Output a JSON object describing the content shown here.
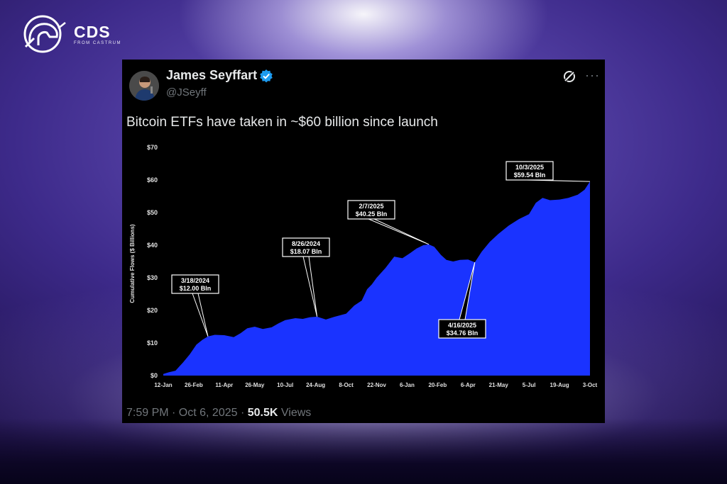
{
  "brand": {
    "title": "CDS",
    "subtitle": "FROM CASTRUM"
  },
  "tweet": {
    "author_name": "James Seyffart",
    "handle": "@JSeyff",
    "text": "Bitcoin ETFs have taken in ~$60 billion since launch",
    "time": "7:59 PM · Oct 6, 2025 · ",
    "views_count": "50.5K",
    "views_label": "Views",
    "more_label": "···"
  },
  "colors": {
    "area": "#1a33ff",
    "accent": "#1d9bf0"
  },
  "chart_data": {
    "type": "area",
    "ylabel": "Cumulative Flows ($ Billions)",
    "ylim": [
      0,
      70
    ],
    "y_ticks": [
      "$0",
      "$10",
      "$20",
      "$30",
      "$40",
      "$50",
      "$60",
      "$70"
    ],
    "x_ticks": [
      "12-Jan",
      "26-Feb",
      "11-Apr",
      "26-May",
      "10-Jul",
      "24-Aug",
      "8-Oct",
      "22-Nov",
      "6-Jan",
      "20-Feb",
      "6-Apr",
      "21-May",
      "5-Jul",
      "19-Aug",
      "3-Oct"
    ],
    "x_tick_dates": [
      "2024-01-12",
      "2024-02-26",
      "2024-04-11",
      "2024-05-26",
      "2024-07-10",
      "2024-08-24",
      "2024-10-08",
      "2024-11-22",
      "2025-01-06",
      "2025-02-20",
      "2025-04-06",
      "2025-05-21",
      "2025-07-05",
      "2025-08-19",
      "2025-10-03"
    ],
    "series": [
      {
        "x": [
          "2024-01-12",
          "2024-01-20",
          "2024-01-30",
          "2024-02-10",
          "2024-02-20",
          "2024-03-01",
          "2024-03-10",
          "2024-03-18",
          "2024-03-28",
          "2024-04-11",
          "2024-04-25",
          "2024-05-05",
          "2024-05-15",
          "2024-05-26",
          "2024-06-07",
          "2024-06-20",
          "2024-06-30",
          "2024-07-10",
          "2024-07-25",
          "2024-08-05",
          "2024-08-15",
          "2024-08-26",
          "2024-09-08",
          "2024-09-20",
          "2024-10-08",
          "2024-10-20",
          "2024-10-31",
          "2024-11-08",
          "2024-11-15",
          "2024-11-22",
          "2024-12-05",
          "2024-12-18",
          "2024-12-30",
          "2025-01-10",
          "2025-01-20",
          "2025-01-30",
          "2025-02-07",
          "2025-02-15",
          "2025-02-25",
          "2025-03-05",
          "2025-03-15",
          "2025-03-25",
          "2025-04-06",
          "2025-04-16",
          "2025-04-26",
          "2025-05-08",
          "2025-05-21",
          "2025-06-05",
          "2025-06-20",
          "2025-07-05",
          "2025-07-15",
          "2025-07-25",
          "2025-08-05",
          "2025-08-19",
          "2025-09-01",
          "2025-09-15",
          "2025-09-25",
          "2025-10-03"
        ],
        "values": [
          0.5,
          1.0,
          1.5,
          4.0,
          6.5,
          9.5,
          11.0,
          12.0,
          12.5,
          12.4,
          11.8,
          13.0,
          14.5,
          15.0,
          14.3,
          14.8,
          16.0,
          17.0,
          17.6,
          17.4,
          17.9,
          18.07,
          17.2,
          18.0,
          19.0,
          21.5,
          23.0,
          26.5,
          28.0,
          30.0,
          33.0,
          36.5,
          36.0,
          37.5,
          39.0,
          40.0,
          40.25,
          39.5,
          37.0,
          35.5,
          35.0,
          35.5,
          35.6,
          34.76,
          38.0,
          41.0,
          43.5,
          46.0,
          48.0,
          49.5,
          53.0,
          54.5,
          53.8,
          54.0,
          54.5,
          55.5,
          57.0,
          59.54
        ]
      }
    ],
    "annotations": [
      {
        "date": "3/18/2024",
        "value": "$12.00 Bln",
        "x": "2024-03-18",
        "y": 12.0
      },
      {
        "date": "8/26/2024",
        "value": "$18.07 Bln",
        "x": "2024-08-26",
        "y": 18.07
      },
      {
        "date": "2/7/2025",
        "value": "$40.25 Bln",
        "x": "2025-02-07",
        "y": 40.25
      },
      {
        "date": "4/16/2025",
        "value": "$34.76 Bln",
        "x": "2025-04-16",
        "y": 34.76
      },
      {
        "date": "10/3/2025",
        "value": "$59.54 Bln",
        "x": "2025-10-03",
        "y": 59.54
      }
    ]
  }
}
